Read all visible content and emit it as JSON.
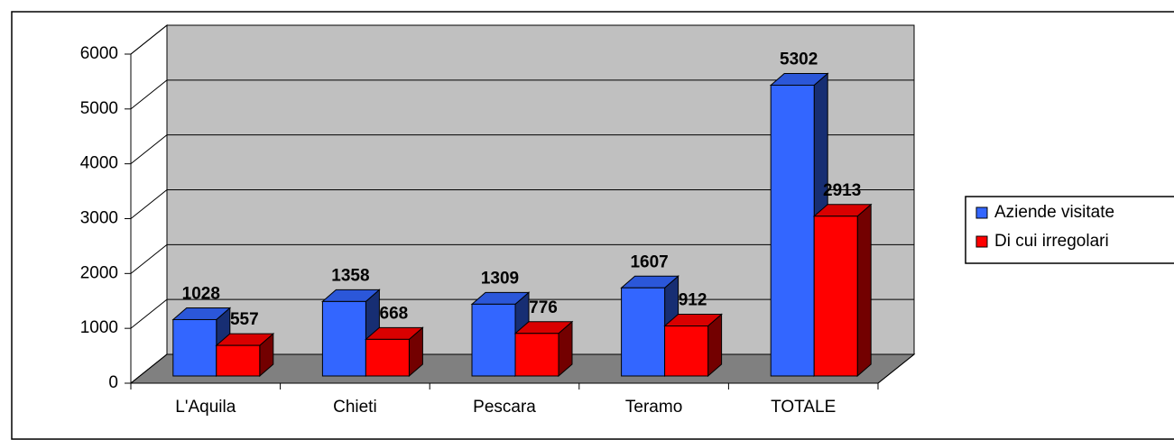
{
  "chart_data": {
    "type": "bar3d",
    "categories": [
      "L'Aquila",
      "Chieti",
      "Pescara",
      "Teramo",
      "TOTALE"
    ],
    "series": [
      {
        "name": "Aziende visitate",
        "color": "#3366ff",
        "values": [
          1028,
          1358,
          1309,
          1607,
          5302
        ]
      },
      {
        "name": "Di cui irregolari",
        "color": "#ff0000",
        "values": [
          557,
          668,
          776,
          912,
          2913
        ]
      }
    ],
    "ylim": [
      0,
      6000
    ],
    "yticks": [
      0,
      1000,
      2000,
      3000,
      4000,
      5000,
      6000
    ],
    "grid": true,
    "legend": "right",
    "wall_color": "#c0c0c0",
    "floor_color": "#808080"
  }
}
